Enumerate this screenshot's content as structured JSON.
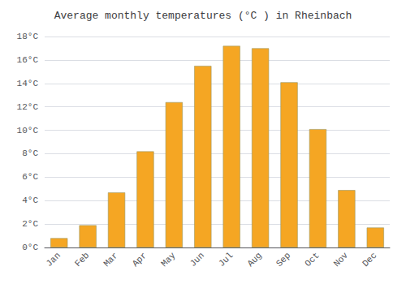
{
  "chart_data": {
    "type": "bar",
    "title": "Average monthly temperatures (°C ) in Rheinbach",
    "categories": [
      "Jan",
      "Feb",
      "Mar",
      "Apr",
      "May",
      "Jun",
      "Jul",
      "Aug",
      "Sep",
      "Oct",
      "Nov",
      "Dec"
    ],
    "values": [
      0.8,
      1.9,
      4.7,
      8.2,
      12.4,
      15.5,
      17.2,
      17.0,
      14.1,
      10.1,
      4.9,
      1.7
    ],
    "color": "#F5A623",
    "ylim": [
      0,
      18
    ],
    "yticks": [
      {
        "value": 0,
        "label": "0°C"
      },
      {
        "value": 2,
        "label": "2°C"
      },
      {
        "value": 4,
        "label": "4°C"
      },
      {
        "value": 6,
        "label": "6°C"
      },
      {
        "value": 8,
        "label": "8°C"
      },
      {
        "value": 10,
        "label": "10°C"
      },
      {
        "value": 12,
        "label": "12°C"
      },
      {
        "value": 14,
        "label": "14°C"
      },
      {
        "value": 16,
        "label": "16°C"
      },
      {
        "value": 18,
        "label": "18°C"
      }
    ],
    "grid": true
  }
}
